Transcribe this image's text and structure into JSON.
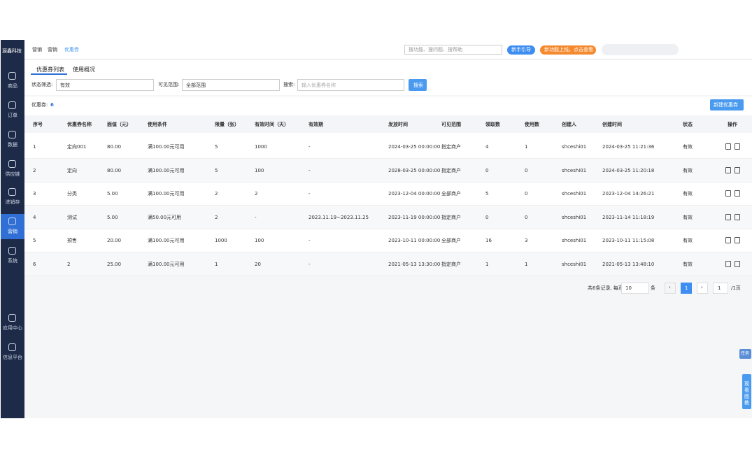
{
  "sidebar": {
    "brand": "源鑫科技",
    "menu": [
      "商品",
      "订单",
      "数据",
      "供应链",
      "进销存",
      "营销",
      "系统",
      "应用中心",
      "信息平台"
    ]
  },
  "header": {
    "breadcrumb": [
      "营销",
      "营销",
      "优惠券"
    ],
    "search_placeholder": "搜功能、搜问题、搜帮助",
    "guide_button": "新手引导",
    "new_feature_button": "新功能上线，点击查看"
  },
  "tabs": [
    "优惠券列表",
    "使用概况"
  ],
  "filters": {
    "status_label": "状态筛选:",
    "status_value": "有效",
    "scope_label": "可见范围:",
    "scope_value": "全部范围",
    "search_label": "搜索:",
    "search_placeholder": "输入优惠券名称",
    "search_button": "搜索"
  },
  "summary": {
    "label": "优惠券:",
    "count": "6",
    "create_button": "新建优惠券"
  },
  "table": {
    "headers": [
      "序号",
      "优惠券名称",
      "面值（元）",
      "使用条件",
      "限量（张）",
      "有效时间（天）",
      "有效期",
      "发放时间",
      "可见范围",
      "领取数",
      "使用数",
      "创建人",
      "创建时间",
      "状态",
      "操作"
    ],
    "rows": [
      [
        "1",
        "定向001",
        "80.00",
        "满100.00元可用",
        "5",
        "1000",
        "-",
        "2024-03-25 00:00:00",
        "指定商户",
        "4",
        "1",
        "shceshi01",
        "2024-03-25 11:21:36",
        "有效"
      ],
      [
        "2",
        "定向",
        "80.00",
        "满100.00元可用",
        "5",
        "100",
        "-",
        "2028-03-25 00:00:00",
        "指定商户",
        "0",
        "0",
        "shceshi01",
        "2024-03-25 11:20:18",
        "有效"
      ],
      [
        "3",
        "分类",
        "5.00",
        "满100.00元可用",
        "2",
        "2",
        "-",
        "2023-12-04 00:00:00",
        "全部商户",
        "5",
        "0",
        "shceshi01",
        "2023-12-04 14:26:21",
        "有效"
      ],
      [
        "4",
        "测试",
        "5.00",
        "满50.00元可用",
        "2",
        "-",
        "2023.11.19~2023.11.25",
        "2023-11-19 00:00:00",
        "指定商户",
        "0",
        "0",
        "shceshi01",
        "2023-11-14 11:18:19",
        "有效"
      ],
      [
        "5",
        "预售",
        "20.00",
        "满100.00元可用",
        "1000",
        "100",
        "-",
        "2023-10-11 00:00:00",
        "全部商户",
        "16",
        "3",
        "shceshi01",
        "2023-10-11 11:15:08",
        "有效"
      ],
      [
        "6",
        "2",
        "25.00",
        "满100.00元可用",
        "1",
        "20",
        "-",
        "2021-05-13 13:30:00",
        "指定商户",
        "1",
        "1",
        "shceshi01",
        "2021-05-13 13:48:10",
        "有效"
      ]
    ]
  },
  "pagination": {
    "summary": "共6条记录, 每页",
    "page_size": "10",
    "unit": "条",
    "prev": "‹",
    "current": "1",
    "next": "›",
    "jump": "1",
    "total": "/1页"
  },
  "floating": {
    "task": "任务",
    "watch": "观看图教"
  }
}
